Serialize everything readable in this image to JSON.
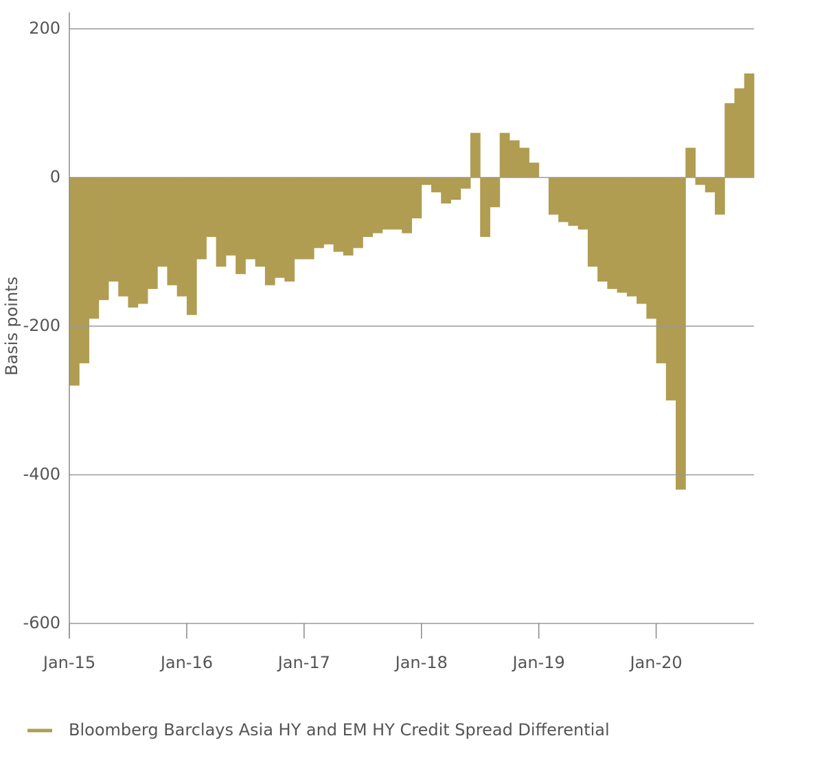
{
  "chart_data": {
    "type": "bar",
    "y_label": "Basis points",
    "categories": [
      "Jan-15",
      null,
      null,
      null,
      null,
      null,
      null,
      null,
      null,
      null,
      null,
      null,
      "Jan-16",
      null,
      null,
      null,
      null,
      null,
      null,
      null,
      null,
      null,
      null,
      null,
      "Jan-17",
      null,
      null,
      null,
      null,
      null,
      null,
      null,
      null,
      null,
      null,
      null,
      "Jan-18",
      null,
      null,
      null,
      null,
      null,
      null,
      null,
      null,
      null,
      null,
      null,
      "Jan-19",
      null,
      null,
      null,
      null,
      null,
      null,
      null,
      null,
      null,
      null,
      null,
      "Jan-20",
      null,
      null,
      null,
      null,
      null,
      null,
      null,
      null,
      null
    ],
    "series": [
      {
        "name": "Bloomberg Barclays Asia HY and EM HY Credit Spread Differential",
        "color": "#b09d52",
        "values": [
          -280,
          -250,
          -190,
          -165,
          -140,
          -160,
          -175,
          -170,
          -150,
          -120,
          -145,
          -160,
          -185,
          -110,
          -80,
          -120,
          -105,
          -130,
          -110,
          -120,
          -145,
          -135,
          -140,
          -110,
          -110,
          -95,
          -90,
          -100,
          -105,
          -95,
          -80,
          -75,
          -70,
          -70,
          -75,
          -55,
          -10,
          -20,
          -35,
          -30,
          -15,
          60,
          -80,
          -40,
          60,
          50,
          40,
          20,
          0,
          -50,
          -60,
          -65,
          -70,
          -120,
          -140,
          -150,
          -155,
          -160,
          -170,
          -190,
          -250,
          -300,
          -420,
          40,
          -10,
          -20,
          -50,
          100,
          120,
          140
        ]
      }
    ],
    "ylim": [
      -600,
      200
    ],
    "yticks": [
      -600,
      -400,
      -200,
      0,
      200
    ],
    "grid": true
  }
}
